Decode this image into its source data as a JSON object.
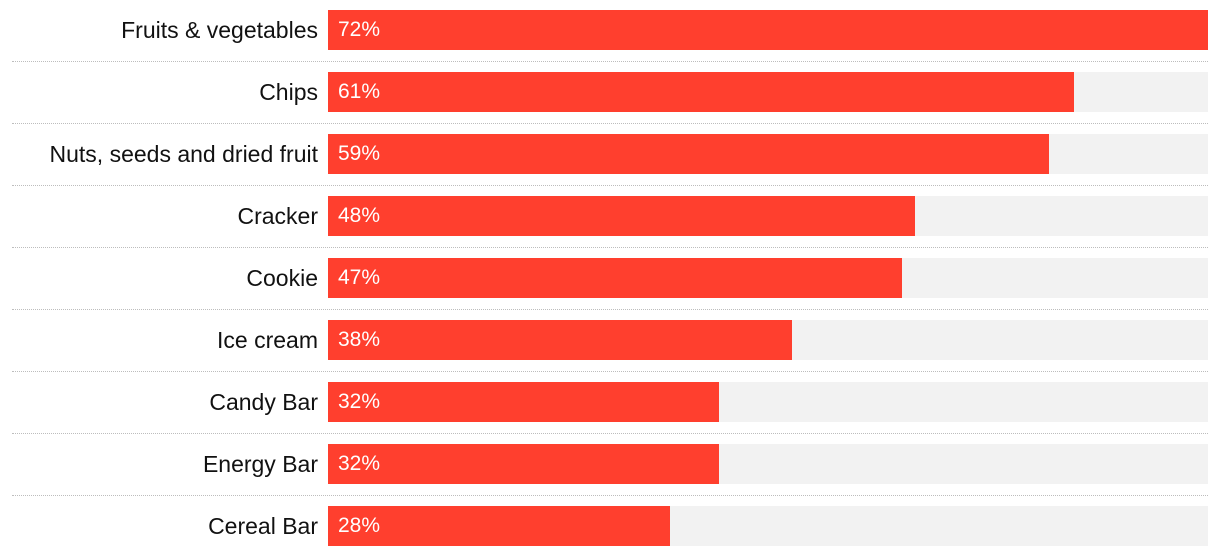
{
  "chart_data": {
    "type": "bar",
    "orientation": "horizontal",
    "categories": [
      "Fruits & vegetables",
      "Chips",
      "Nuts, seeds and dried fruit",
      "Cracker",
      "Cookie",
      "Ice cream",
      "Candy Bar",
      "Energy Bar",
      "Cereal Bar"
    ],
    "values": [
      72,
      61,
      59,
      48,
      47,
      38,
      32,
      32,
      28
    ],
    "value_labels": [
      "72%",
      "61%",
      "59%",
      "48%",
      "47%",
      "38%",
      "32%",
      "32%",
      "28%"
    ],
    "xlim": [
      0,
      72
    ],
    "grid": false,
    "legend": "none",
    "colors": {
      "bar": "#ff3f2e",
      "track": "#f2f2f2",
      "label": "#111111",
      "value_text": "#ffffff",
      "divider": "#bdbdbd"
    }
  }
}
